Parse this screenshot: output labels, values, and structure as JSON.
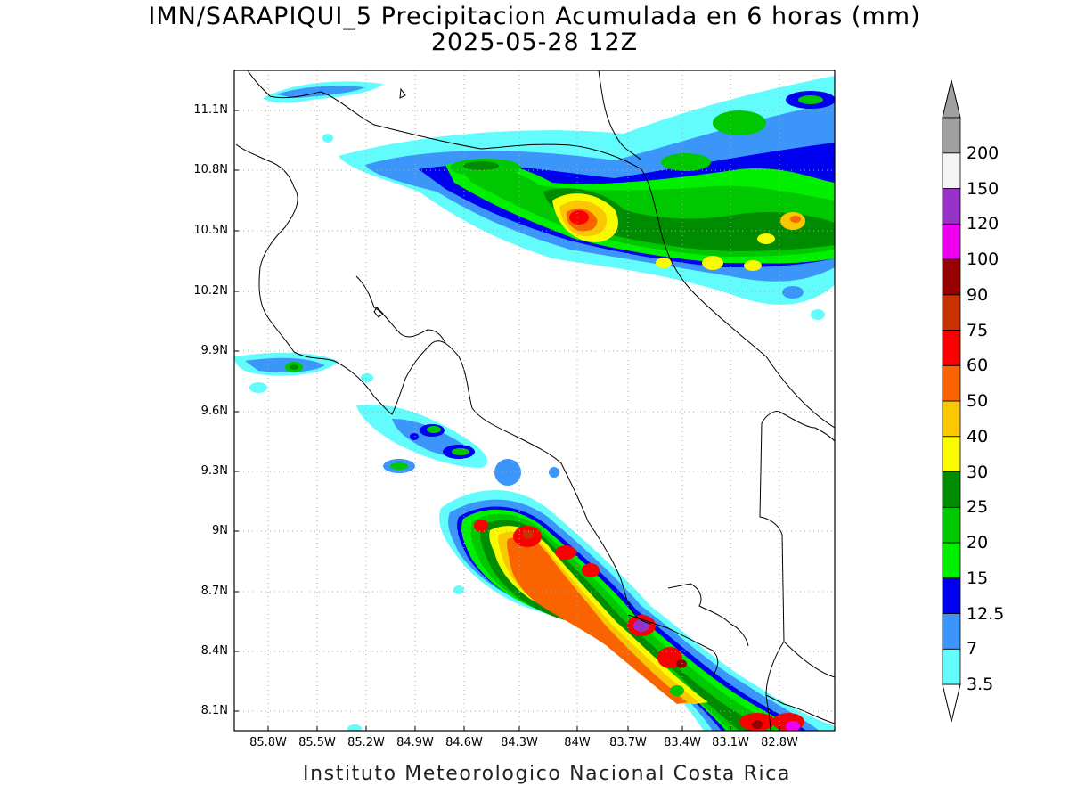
{
  "title": {
    "line1": "IMN/SARAPIQUI_5 Precipitacion Acumulada en 6 horas (mm)",
    "line2": "2025-05-28 12Z"
  },
  "footer": "Instituto Meteorologico Nacional Costa Rica",
  "axes": {
    "lat_labels": [
      "11.1N",
      "10.8N",
      "10.5N",
      "10.2N",
      "9.9N",
      "9.6N",
      "9.3N",
      "9N",
      "8.7N",
      "8.4N",
      "8.1N"
    ],
    "lon_labels": [
      "85.8W",
      "85.5W",
      "85.2W",
      "84.9W",
      "84.6W",
      "84.3W",
      "84W",
      "83.7W",
      "83.4W",
      "83.1W",
      "82.8W"
    ]
  },
  "colorbar": {
    "levels": [
      "3.5",
      "7",
      "12.5",
      "15",
      "20",
      "25",
      "30",
      "40",
      "50",
      "60",
      "75",
      "90",
      "100",
      "120",
      "150",
      "200"
    ],
    "colors": [
      "#63fcfc",
      "#3c96fa",
      "#0000f0",
      "#00f000",
      "#00c800",
      "#008c00",
      "#fafa00",
      "#fac800",
      "#fa6400",
      "#fa0000",
      "#c83200",
      "#960000",
      "#f000f0",
      "#9632c8",
      "#f5f5f5",
      "#a0a0a0"
    ]
  }
}
